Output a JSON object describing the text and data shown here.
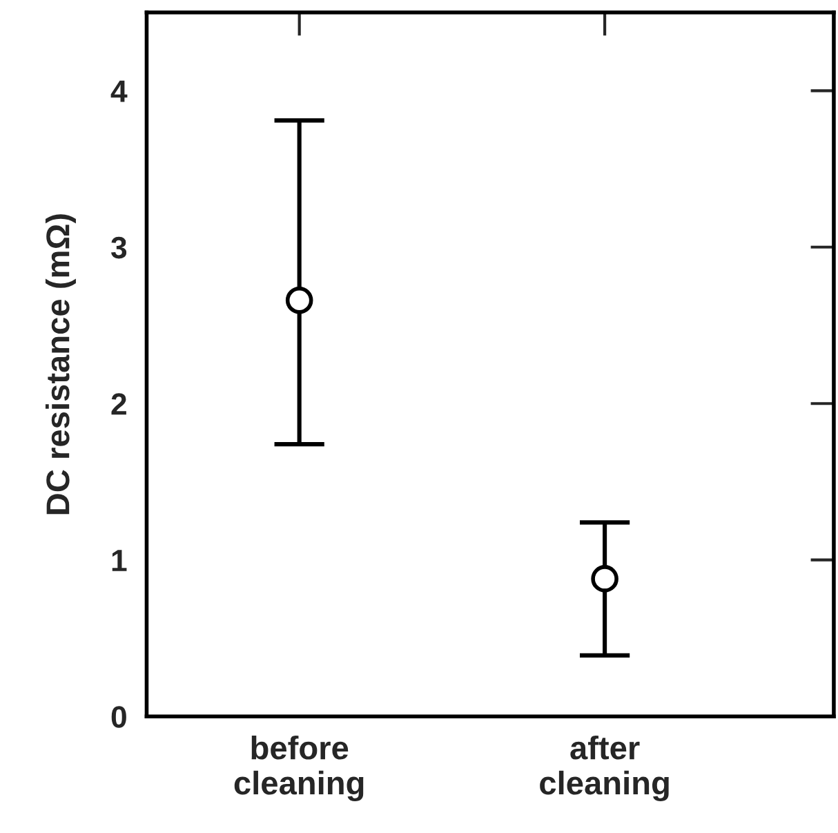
{
  "chart_data": {
    "type": "scatter",
    "ylabel": "DC resistance (mΩ)",
    "categories": [
      "before\ncleaning",
      "after\ncleaning"
    ],
    "values": [
      2.66,
      0.88
    ],
    "errors": [
      [
        1.74,
        3.81
      ],
      [
        0.39,
        1.24
      ]
    ],
    "color": "#000000",
    "marker": "circle",
    "ylim": [
      0,
      4.5
    ],
    "yticks": [
      0,
      1,
      2,
      3,
      4
    ],
    "grid": false
  }
}
